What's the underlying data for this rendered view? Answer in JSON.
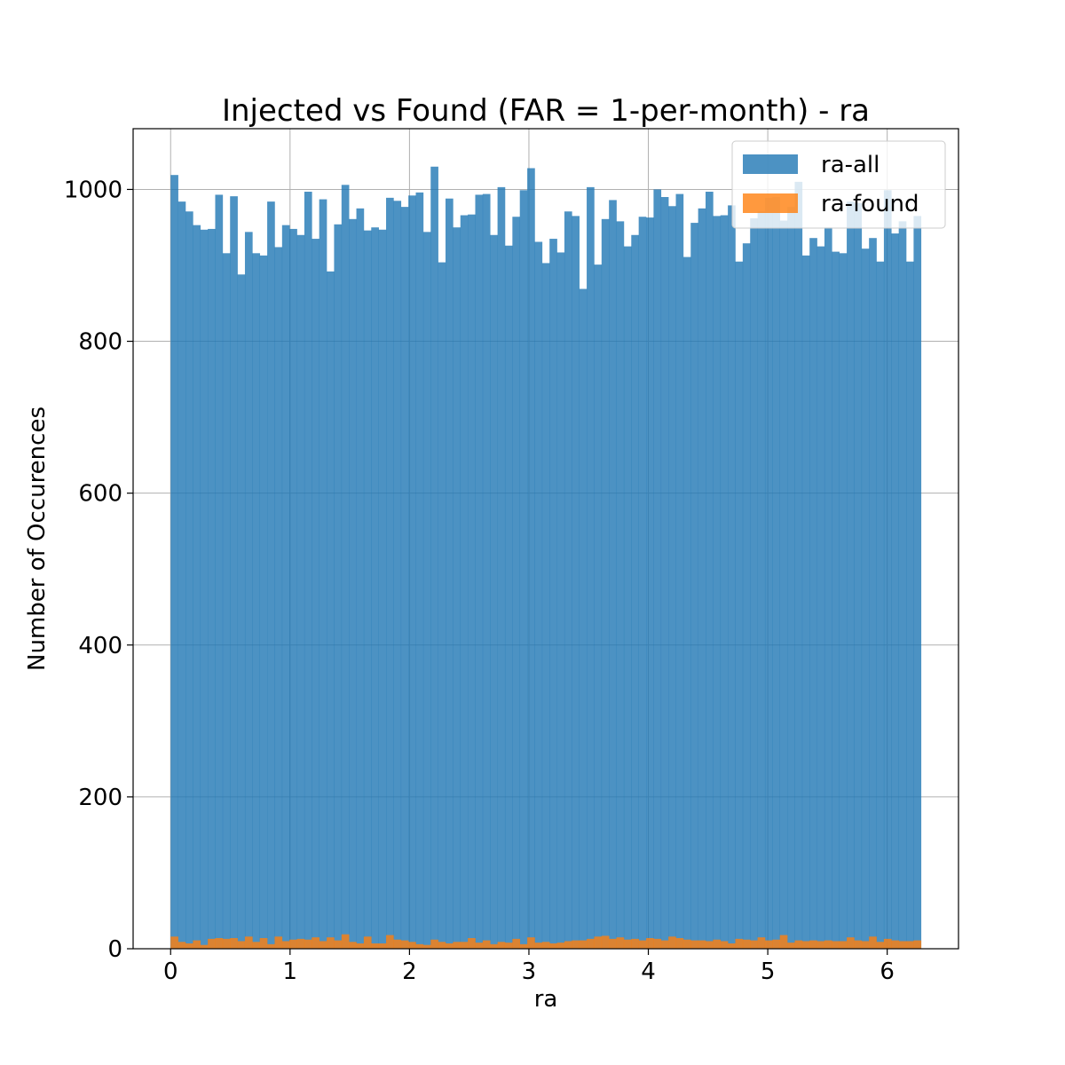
{
  "chart_data": {
    "type": "bar",
    "title": "Injected vs Found (FAR = 1-per-month) - ra",
    "xlabel": "ra",
    "ylabel": "Number of Occurences",
    "xlim": [
      -0.314,
      6.597
    ],
    "ylim": [
      0,
      1080
    ],
    "x_ticks": [
      0,
      1,
      2,
      3,
      4,
      5,
      6
    ],
    "x_tick_labels": [
      "0",
      "1",
      "2",
      "3",
      "4",
      "5",
      "6"
    ],
    "y_ticks": [
      0,
      200,
      400,
      600,
      800,
      1000
    ],
    "y_tick_labels": [
      "0",
      "200",
      "400",
      "600",
      "800",
      "1000"
    ],
    "grid": true,
    "legend_position": "top-right",
    "bin_range": [
      0,
      6.2832
    ],
    "series": [
      {
        "name": "ra-all",
        "color": "#1f77b4",
        "values": [
          1019,
          984,
          971,
          953,
          947,
          948,
          993,
          916,
          991,
          888,
          944,
          916,
          913,
          984,
          924,
          953,
          948,
          940,
          997,
          935,
          987,
          892,
          954,
          1006,
          961,
          975,
          946,
          950,
          947,
          989,
          985,
          977,
          992,
          996,
          944,
          1030,
          904,
          988,
          950,
          966,
          967,
          993,
          994,
          940,
          1003,
          926,
          964,
          999,
          1028,
          931,
          903,
          935,
          917,
          971,
          965,
          869,
          1003,
          901,
          961,
          986,
          958,
          925,
          940,
          964,
          963,
          1000,
          990,
          978,
          994,
          911,
          956,
          975,
          997,
          965,
          966,
          979,
          905,
          929,
          962,
          971,
          989,
          990,
          959,
          977,
          1010,
          913,
          936,
          925,
          950,
          918,
          916,
          984,
          982,
          922,
          936,
          905,
          999,
          942,
          958,
          905,
          965
        ]
      },
      {
        "name": "ra-found",
        "color": "#ff7f0e",
        "values": [
          16,
          9,
          7,
          11,
          5,
          13,
          14,
          13,
          14,
          10,
          16,
          9,
          14,
          6,
          16,
          10,
          12,
          13,
          12,
          15,
          10,
          15,
          11,
          19,
          9,
          7,
          16,
          7,
          7,
          18,
          12,
          11,
          9,
          6,
          5,
          12,
          9,
          7,
          9,
          9,
          14,
          8,
          11,
          6,
          9,
          8,
          13,
          6,
          15,
          8,
          9,
          7,
          8,
          10,
          11,
          11,
          13,
          16,
          17,
          13,
          15,
          12,
          13,
          11,
          14,
          13,
          11,
          16,
          14,
          12,
          11,
          11,
          10,
          12,
          10,
          7,
          13,
          12,
          11,
          15,
          11,
          12,
          18,
          8,
          11,
          10,
          11,
          10,
          11,
          10,
          10,
          15,
          11,
          10,
          16,
          9,
          13,
          11,
          10,
          10,
          11
        ]
      }
    ]
  }
}
